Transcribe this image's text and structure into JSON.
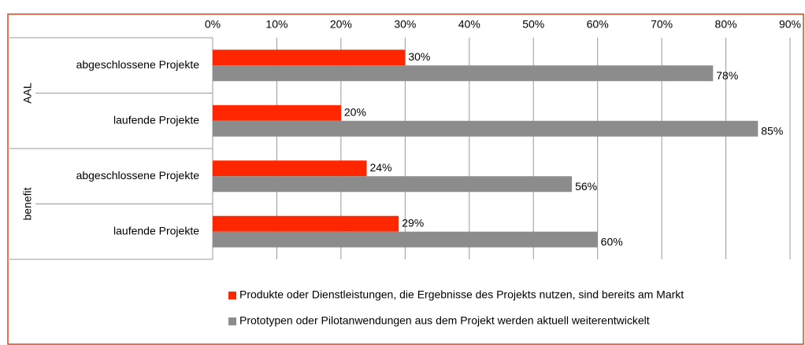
{
  "chart_data": {
    "type": "bar",
    "orientation": "horizontal",
    "categories": [
      "abgeschlossene Projekte",
      "laufende Projekte",
      "abgeschlossene Projekte",
      "laufende Projekte"
    ],
    "category_groups": [
      "AAL",
      "AAL",
      "benefit",
      "benefit"
    ],
    "series": [
      {
        "name": "Produkte oder Dienstleistungen, die Ergebnisse des Projekts nutzen, sind bereits am Markt",
        "color": "#ff2600",
        "values": [
          30,
          20,
          24,
          29
        ],
        "value_labels": [
          "30%",
          "20%",
          "24%",
          "29%"
        ]
      },
      {
        "name": "Prototypen oder Pilotanwendungen aus dem Projekt werden aktuell weiterentwickelt",
        "color": "#8c8c8c",
        "values": [
          78,
          85,
          56,
          60
        ],
        "value_labels": [
          "78%",
          "85%",
          "56%",
          "60%"
        ]
      }
    ],
    "xlim": [
      0,
      90
    ],
    "xticks": [
      {
        "value": 0,
        "label": "0%"
      },
      {
        "value": 10,
        "label": "10%"
      },
      {
        "value": 20,
        "label": "20%"
      },
      {
        "value": 30,
        "label": "30%"
      },
      {
        "value": 40,
        "label": "40%"
      },
      {
        "value": 50,
        "label": "50%"
      },
      {
        "value": 60,
        "label": "60%"
      },
      {
        "value": 70,
        "label": "70%"
      },
      {
        "value": 80,
        "label": "80%"
      },
      {
        "value": 90,
        "label": "90%"
      }
    ],
    "grid": true,
    "legend": "bottom"
  }
}
